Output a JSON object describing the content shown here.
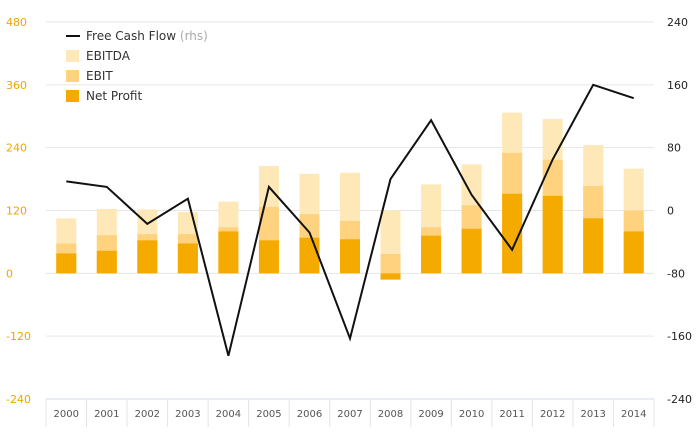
{
  "chart_data": {
    "type": "bar",
    "categories": [
      "2000",
      "2001",
      "2002",
      "2003",
      "2004",
      "2005",
      "2006",
      "2007",
      "2008",
      "2009",
      "2010",
      "2011",
      "2012",
      "2013",
      "2014"
    ],
    "series": [
      {
        "name": "EBITDA",
        "axis": "left",
        "values": [
          105,
          123,
          122,
          117,
          137,
          205,
          190,
          192,
          120,
          170,
          208,
          307,
          295,
          245,
          200
        ]
      },
      {
        "name": "EBIT",
        "axis": "left",
        "values": [
          57,
          73,
          75,
          75,
          88,
          127,
          113,
          100,
          37,
          88,
          130,
          230,
          217,
          167,
          120
        ]
      },
      {
        "name": "Net Profit",
        "axis": "left",
        "values": [
          38,
          43,
          63,
          57,
          80,
          63,
          68,
          65,
          -12,
          72,
          85,
          152,
          148,
          105,
          80
        ]
      },
      {
        "name": "Free Cash Flow",
        "axis": "right",
        "values": [
          37,
          30,
          -17,
          15,
          -185,
          30,
          -28,
          -163,
          40,
          115,
          20,
          -50,
          65,
          160,
          143
        ]
      }
    ],
    "legend": [
      {
        "label": "Free Cash Flow",
        "suffix": "(rhs)",
        "kind": "line",
        "color": "#111111"
      },
      {
        "label": "EBITDA",
        "suffix": "",
        "kind": "box",
        "color": "#ffe8b8"
      },
      {
        "label": "EBIT",
        "suffix": "",
        "kind": "box",
        "color": "#ffd27f"
      },
      {
        "label": "Net Profit",
        "suffix": "",
        "kind": "box",
        "color": "#f5aa00"
      }
    ],
    "ylim_left": [
      -240,
      480
    ],
    "yticks_left": [
      -240,
      -120,
      0,
      120,
      240,
      360,
      480
    ],
    "ylim_right": [
      -240,
      240
    ],
    "yticks_right": [
      -240,
      -160,
      -80,
      0,
      80,
      160,
      240
    ],
    "grid": true,
    "legend_position": "top-left",
    "colors": {
      "ebitda": "#ffe8b8",
      "ebit": "#ffd27f",
      "net_profit": "#f5aa00",
      "fcf": "#111111",
      "left_axis": "#f0a500",
      "grid": "#e6e6e6",
      "plot_bottom": "#e8eef8"
    }
  }
}
